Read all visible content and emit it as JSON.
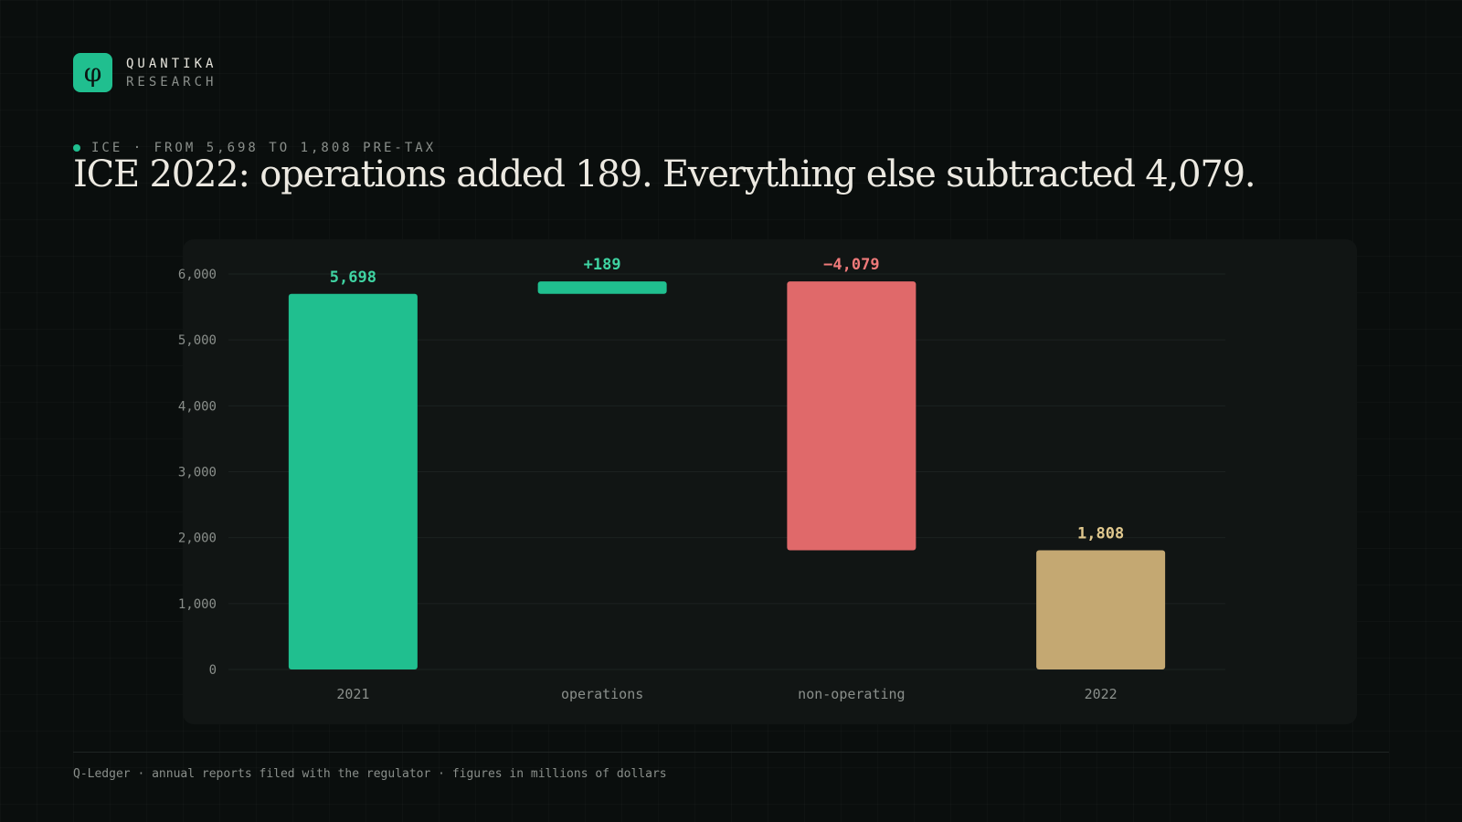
{
  "brand": {
    "logo_glyph": "φ",
    "name": "QUANTIKA",
    "subtitle": "RESEARCH"
  },
  "eyebrow": "ICE · FROM 5,698 TO 1,808 PRE-TAX",
  "headline": "ICE 2022: operations added 189. Everything else subtracted 4,079.",
  "footer": "Q-Ledger · annual reports filed with the regulator · figures in millions of dollars",
  "colors": {
    "background": "#0a0e0d",
    "panel": "#111514",
    "accent_green": "#20bf8f",
    "negative_red": "#e0696a",
    "total_tan": "#c4a872",
    "grid": "#1c2220",
    "tick_text": "#8a8f8b"
  },
  "chart_data": {
    "type": "waterfall",
    "categories": [
      "2021",
      "operations",
      "non-operating",
      "2022"
    ],
    "values": [
      5698,
      189,
      -4079,
      1808
    ],
    "bar_kind": [
      "total",
      "delta",
      "delta",
      "total"
    ],
    "data_labels": [
      "5,698",
      "+189",
      "−4,079",
      "1,808"
    ],
    "ylim": [
      0,
      6000
    ],
    "yticks": [
      0,
      1000,
      2000,
      3000,
      4000,
      5000,
      6000
    ],
    "ytick_labels": [
      "0",
      "1,000",
      "2,000",
      "3,000",
      "4,000",
      "5,000",
      "6,000"
    ],
    "grid": true,
    "legend": false,
    "xlabel": "",
    "ylabel": ""
  }
}
